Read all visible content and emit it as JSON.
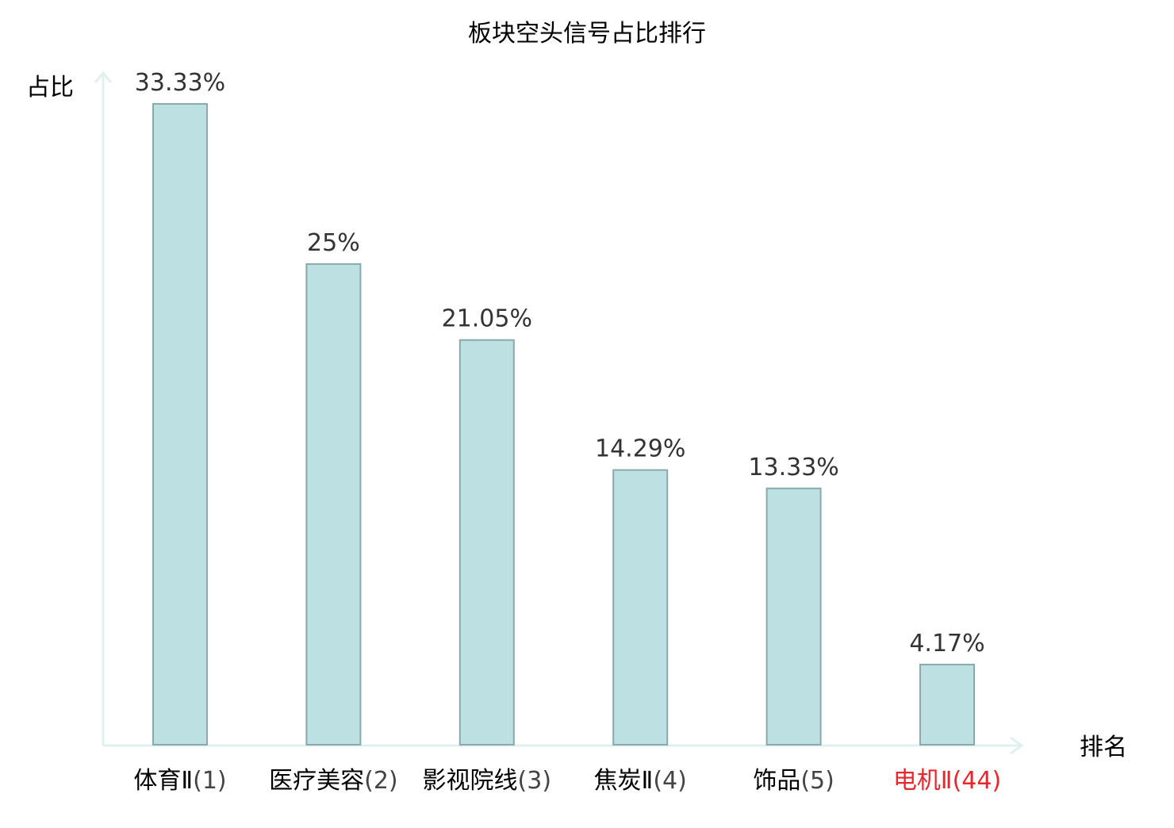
{
  "chart_data": {
    "type": "bar",
    "title": "板块空头信号占比排行",
    "xlabel": "排名",
    "ylabel": "占比",
    "categories": [
      {
        "name": "体育Ⅱ",
        "rank": "(1)",
        "highlight": false
      },
      {
        "name": "医疗美容",
        "rank": "(2)",
        "highlight": false
      },
      {
        "name": "影视院线",
        "rank": "(3)",
        "highlight": false
      },
      {
        "name": "焦炭Ⅱ",
        "rank": "(4)",
        "highlight": false
      },
      {
        "name": "饰品",
        "rank": "(5)",
        "highlight": false
      },
      {
        "name": "电机Ⅱ",
        "rank": "(44)",
        "highlight": true
      }
    ],
    "values": [
      33.33,
      25,
      21.05,
      14.29,
      13.33,
      4.17
    ],
    "value_labels": [
      "33.33%",
      "25%",
      "21.05%",
      "14.29%",
      "13.33%",
      "4.17%"
    ],
    "ylim": [
      0,
      33.33
    ],
    "grid": false,
    "legend": "none"
  },
  "colors": {
    "bar_fill": "#bde0e3",
    "bar_stroke": "#8aa9ac",
    "axis": "#dff1ee",
    "text": "#000000",
    "value_text": "#333333",
    "rank_text": "#444444",
    "highlight": "#e8262b"
  }
}
